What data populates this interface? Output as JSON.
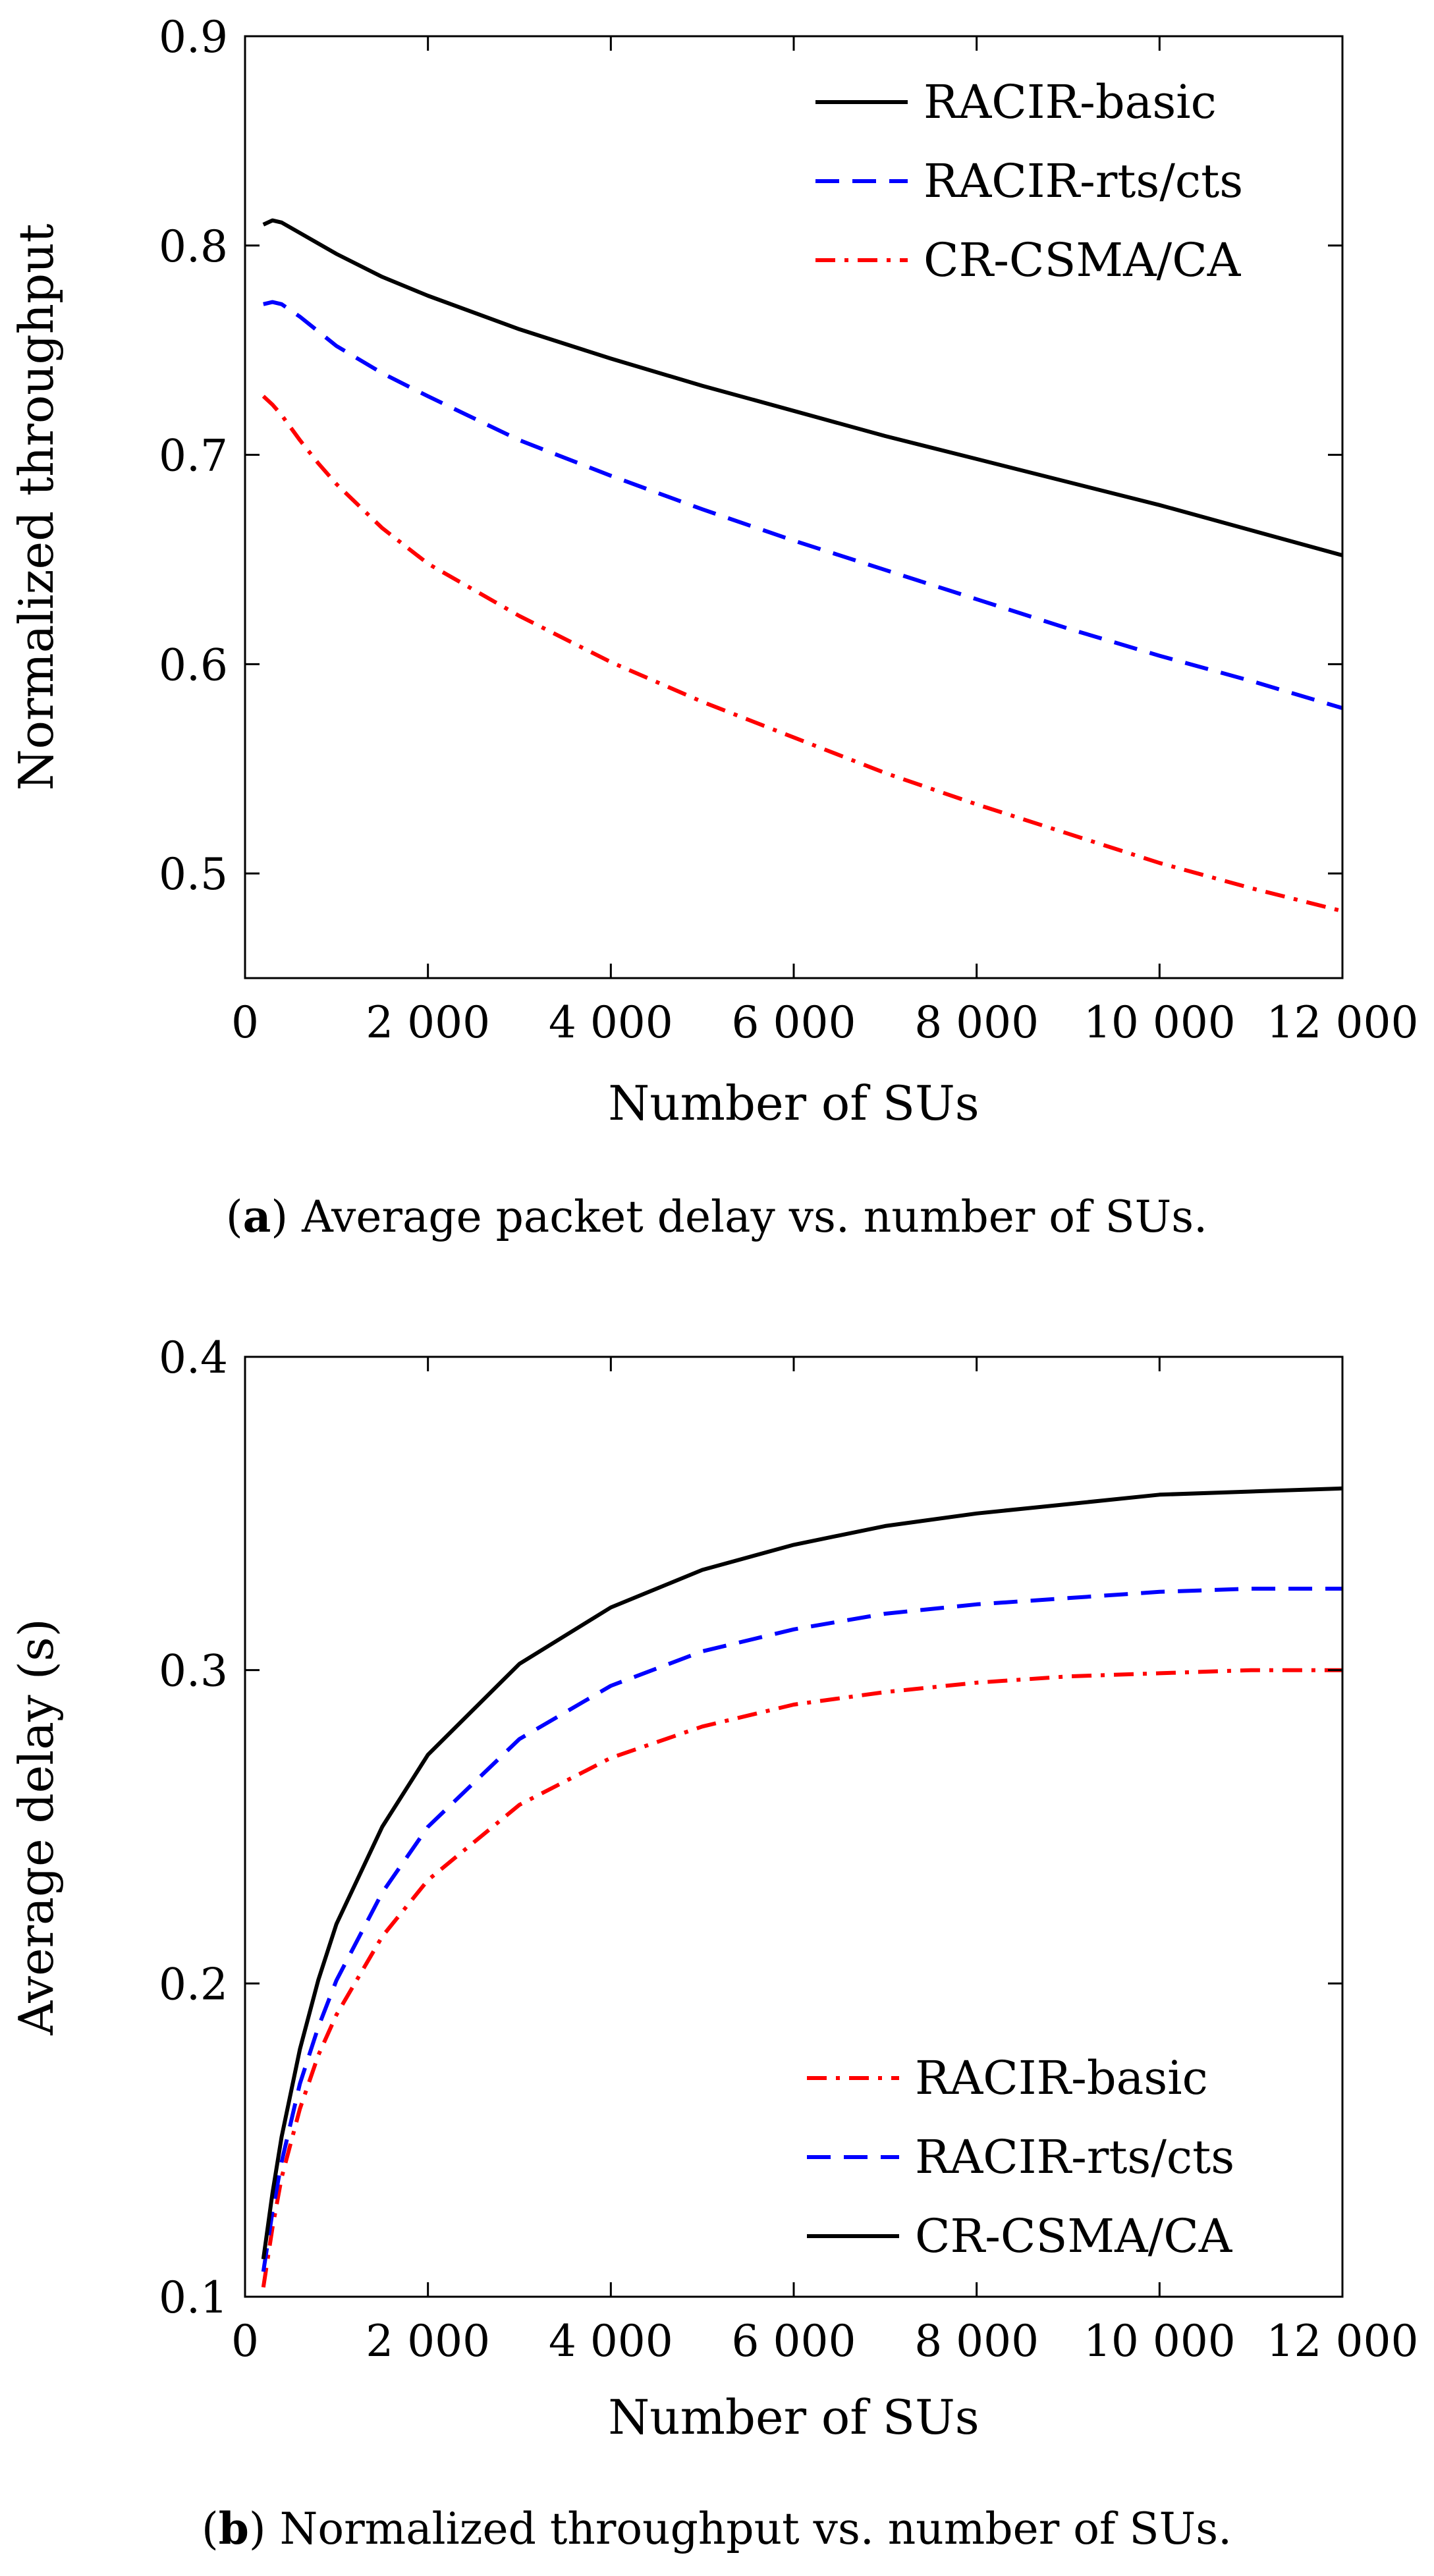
{
  "chart_data": [
    {
      "type": "line",
      "caption_id": "a",
      "caption_text": "Average packet delay vs. number of SUs.",
      "xlabel": "Number of SUs",
      "ylabel": "Normalized throughput",
      "xlim": [
        0,
        12000
      ],
      "ylim": [
        0.45,
        0.9
      ],
      "x_ticks": [
        "2 000",
        "4 000",
        "6 000",
        "8 000",
        "10 000",
        "12 000"
      ],
      "y_ticks": [
        "0.5",
        "0.6",
        "0.7",
        "0.8",
        "0.9"
      ],
      "legend_position": "top-right",
      "series": [
        {
          "name": "RACIR-basic",
          "color": "#000000",
          "dash": "solid",
          "x": [
            200,
            300,
            400,
            600,
            800,
            1000,
            1500,
            2000,
            3000,
            4000,
            5000,
            6000,
            7000,
            8000,
            9000,
            10000,
            11000,
            12000
          ],
          "y": [
            0.81,
            0.812,
            0.811,
            0.806,
            0.801,
            0.796,
            0.785,
            0.776,
            0.76,
            0.746,
            0.733,
            0.721,
            0.709,
            0.698,
            0.687,
            0.676,
            0.664,
            0.652
          ]
        },
        {
          "name": "RACIR-rts/cts",
          "color": "#0000ff",
          "dash": "dashed",
          "x": [
            200,
            300,
            400,
            600,
            800,
            1000,
            1500,
            2000,
            3000,
            4000,
            5000,
            6000,
            7000,
            8000,
            9000,
            10000,
            11000,
            12000
          ],
          "y": [
            0.772,
            0.773,
            0.772,
            0.766,
            0.759,
            0.752,
            0.739,
            0.728,
            0.707,
            0.69,
            0.674,
            0.659,
            0.645,
            0.631,
            0.617,
            0.604,
            0.592,
            0.579
          ]
        },
        {
          "name": "CR-CSMA/CA",
          "color": "#ff0000",
          "dash": "dashdot",
          "x": [
            200,
            300,
            400,
            600,
            800,
            1000,
            1500,
            2000,
            3000,
            4000,
            5000,
            6000,
            7000,
            8000,
            9000,
            10000,
            11000,
            12000
          ],
          "y": [
            0.728,
            0.724,
            0.719,
            0.707,
            0.696,
            0.686,
            0.665,
            0.648,
            0.623,
            0.601,
            0.582,
            0.565,
            0.548,
            0.533,
            0.519,
            0.505,
            0.493,
            0.482
          ]
        }
      ]
    },
    {
      "type": "line",
      "caption_id": "b",
      "caption_text": "Normalized throughput vs. number of SUs.",
      "xlabel": "Number of SUs",
      "ylabel": "Average delay (s)",
      "xlim": [
        0,
        12000
      ],
      "ylim": [
        0.1,
        0.4
      ],
      "x_ticks": [
        "2 000",
        "4 000",
        "6 000",
        "8 000",
        "10 000",
        "12 000"
      ],
      "y_ticks": [
        "0.1",
        "0.2",
        "0.3",
        "0.4"
      ],
      "legend_position": "bottom-right",
      "series": [
        {
          "name": "RACIR-basic",
          "color": "#ff0000",
          "dash": "dashdot",
          "x": [
            200,
            300,
            400,
            600,
            800,
            1000,
            1500,
            2000,
            3000,
            4000,
            5000,
            6000,
            7000,
            8000,
            9000,
            10000,
            11000,
            12000
          ],
          "y": [
            0.103,
            0.122,
            0.138,
            0.16,
            0.177,
            0.19,
            0.215,
            0.233,
            0.257,
            0.272,
            0.282,
            0.289,
            0.293,
            0.296,
            0.298,
            0.299,
            0.3,
            0.3
          ]
        },
        {
          "name": "RACIR-rts/cts",
          "color": "#0000ff",
          "dash": "dashed",
          "x": [
            200,
            300,
            400,
            600,
            800,
            1000,
            1500,
            2000,
            3000,
            4000,
            5000,
            6000,
            7000,
            8000,
            9000,
            10000,
            11000,
            12000
          ],
          "y": [
            0.108,
            0.127,
            0.143,
            0.168,
            0.186,
            0.201,
            0.229,
            0.25,
            0.278,
            0.295,
            0.306,
            0.313,
            0.318,
            0.321,
            0.323,
            0.325,
            0.326,
            0.326
          ]
        },
        {
          "name": "CR-CSMA/CA",
          "color": "#000000",
          "dash": "solid",
          "x": [
            200,
            300,
            400,
            600,
            800,
            1000,
            1500,
            2000,
            3000,
            4000,
            5000,
            6000,
            7000,
            8000,
            9000,
            10000,
            11000,
            12000
          ],
          "y": [
            0.112,
            0.133,
            0.151,
            0.179,
            0.201,
            0.219,
            0.25,
            0.273,
            0.302,
            0.32,
            0.332,
            0.34,
            0.346,
            0.35,
            0.353,
            0.356,
            0.357,
            0.358
          ]
        }
      ]
    }
  ]
}
